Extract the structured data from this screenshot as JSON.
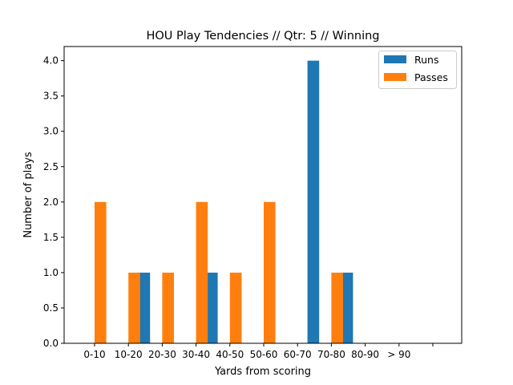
{
  "chart_data": {
    "type": "bar",
    "title": "HOU Play Tendencies // Qtr: 5 // Winning",
    "xlabel": "Yards from scoring",
    "ylabel": "Number of plays",
    "categories": [
      "0-10",
      "10-20",
      "20-30",
      "30-40",
      "40-50",
      "50-60",
      "60-70",
      "70-80",
      "80-90",
      "> 90"
    ],
    "series": [
      {
        "name": "Runs",
        "color": "#1f77b4",
        "values": [
          0,
          1,
          0,
          1,
          0,
          0,
          4,
          1,
          0,
          0
        ]
      },
      {
        "name": "Passes",
        "color": "#ff7f0e",
        "values": [
          2,
          1,
          1,
          2,
          1,
          2,
          0,
          1,
          0,
          0
        ]
      }
    ],
    "ylim": [
      0,
      4.2
    ],
    "yticks": [
      "0.0",
      "0.5",
      "1.0",
      "1.5",
      "2.0",
      "2.5",
      "3.0",
      "3.5",
      "4.0"
    ],
    "grid": false,
    "legend_position": "top-right"
  }
}
